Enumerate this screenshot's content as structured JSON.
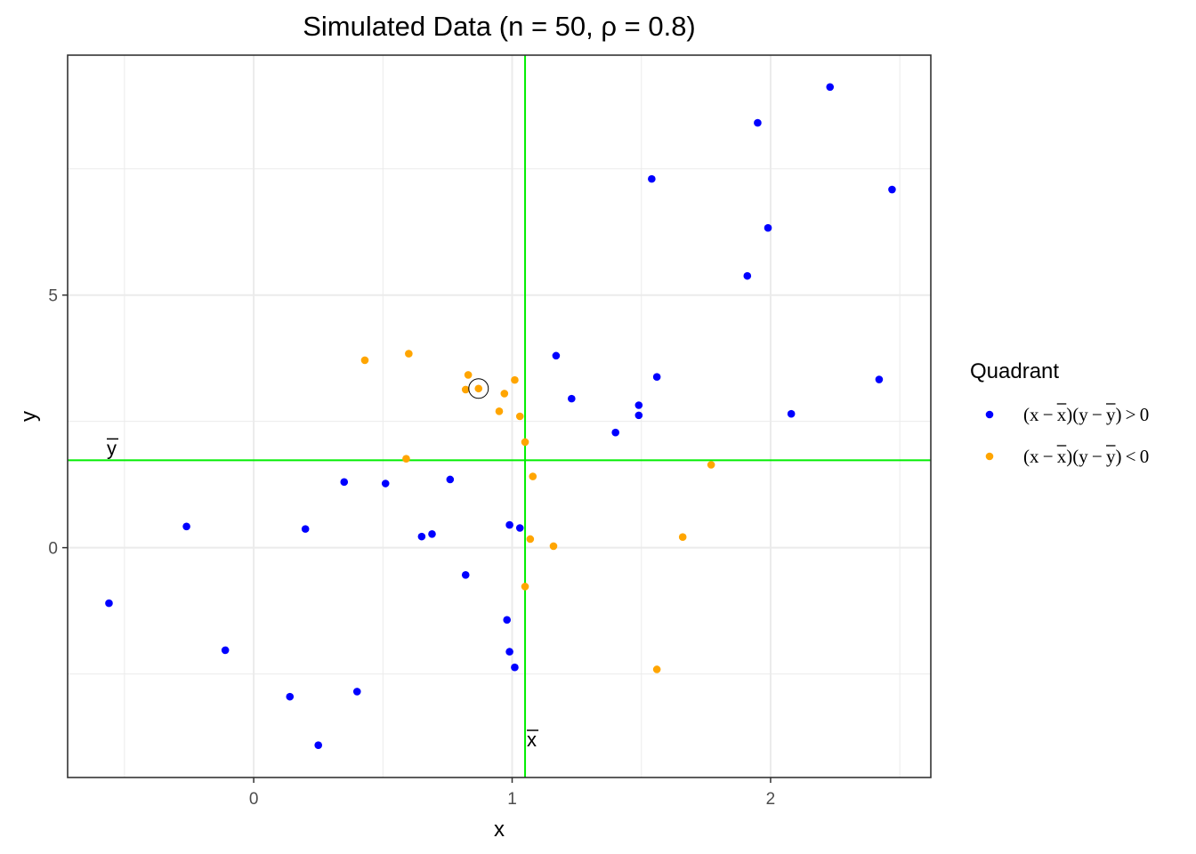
{
  "chart_data": {
    "type": "scatter",
    "title": "Simulated Data (n = 50, ρ = 0.8)",
    "xlabel": "x",
    "ylabel": "y",
    "xlim": [
      -0.72,
      2.62
    ],
    "ylim": [
      -4.55,
      9.75
    ],
    "x_ticks": [
      0,
      1,
      2
    ],
    "y_ticks": [
      0,
      5
    ],
    "grid": true,
    "x_mean": 1.05,
    "y_mean": 1.73,
    "x_mean_label": "x",
    "y_mean_label": "y",
    "mean_line_color": "#00ee00",
    "legend": {
      "title": "Quadrant",
      "placement": "right",
      "entries": [
        {
          "label": "(x − x)(y − y) > 0",
          "color": "#0000ff"
        },
        {
          "label": "(x − x)(y − y) < 0",
          "color": "#ffa500"
        }
      ]
    },
    "highlighted_point": {
      "x": 0.87,
      "y": 3.15
    },
    "series": [
      {
        "color": "#0000ff",
        "points": [
          [
            -0.56,
            -1.1
          ],
          [
            -0.26,
            0.42
          ],
          [
            -0.11,
            -2.03
          ],
          [
            0.14,
            -2.95
          ],
          [
            0.2,
            0.37
          ],
          [
            0.25,
            -3.91
          ],
          [
            0.35,
            1.3
          ],
          [
            0.4,
            -2.85
          ],
          [
            0.51,
            1.27
          ],
          [
            0.65,
            0.22
          ],
          [
            0.69,
            0.27
          ],
          [
            0.76,
            1.35
          ],
          [
            0.82,
            -0.54
          ],
          [
            0.98,
            -1.43
          ],
          [
            0.99,
            -2.06
          ],
          [
            0.99,
            0.45
          ],
          [
            1.01,
            -2.37
          ],
          [
            1.03,
            0.39
          ],
          [
            1.17,
            3.8
          ],
          [
            1.23,
            2.95
          ],
          [
            1.4,
            2.28
          ],
          [
            1.49,
            2.82
          ],
          [
            1.49,
            2.62
          ],
          [
            1.54,
            7.3
          ],
          [
            1.56,
            3.38
          ],
          [
            1.91,
            5.38
          ],
          [
            1.95,
            8.41
          ],
          [
            1.99,
            6.33
          ],
          [
            2.08,
            2.65
          ],
          [
            2.23,
            9.12
          ],
          [
            2.42,
            3.33
          ],
          [
            2.47,
            7.09
          ]
        ]
      },
      {
        "color": "#ffa500",
        "points": [
          [
            0.43,
            3.71
          ],
          [
            0.59,
            1.76
          ],
          [
            0.6,
            3.84
          ],
          [
            0.82,
            3.13
          ],
          [
            0.83,
            3.42
          ],
          [
            0.87,
            3.15
          ],
          [
            0.95,
            2.7
          ],
          [
            0.97,
            3.05
          ],
          [
            1.01,
            3.32
          ],
          [
            1.03,
            2.6
          ],
          [
            1.05,
            2.09
          ],
          [
            1.05,
            -0.77
          ],
          [
            1.07,
            0.17
          ],
          [
            1.08,
            1.41
          ],
          [
            1.16,
            0.03
          ],
          [
            1.56,
            -2.41
          ],
          [
            1.66,
            0.21
          ],
          [
            1.77,
            1.64
          ]
        ]
      }
    ]
  }
}
